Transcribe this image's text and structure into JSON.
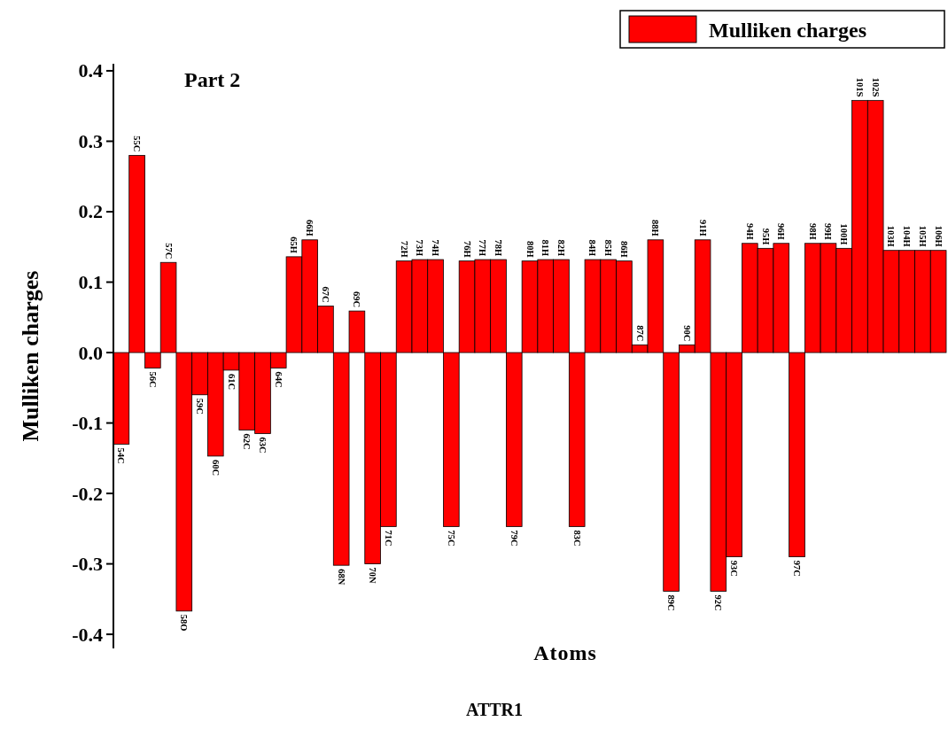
{
  "chart_data": {
    "type": "bar",
    "title": "Part 2",
    "xlabel": "Atoms",
    "ylabel": "Mulliken charges",
    "annotations": [
      "ATTR1"
    ],
    "categories": [
      "54C",
      "55C",
      "56C",
      "57C",
      "58O",
      "59C",
      "60C",
      "61C",
      "62C",
      "63C",
      "64C",
      "65H",
      "66H",
      "67C",
      "68N",
      "69C",
      "70N",
      "71C",
      "72H",
      "73H",
      "74H",
      "75C",
      "76H",
      "77H",
      "78H",
      "79C",
      "80H",
      "81H",
      "82H",
      "83C",
      "84H",
      "85H",
      "86H",
      "87C",
      "88H",
      "89C",
      "90C",
      "91H",
      "92C",
      "93C",
      "94H",
      "95H",
      "96H",
      "97C",
      "98H",
      "99H",
      "100H",
      "101S",
      "102S",
      "103H",
      "104H",
      "105H",
      "106H"
    ],
    "series": [
      {
        "name": "Mulliken charges",
        "color": "#ff0000",
        "values": [
          -0.13,
          0.28,
          -0.022,
          0.128,
          -0.367,
          -0.06,
          -0.147,
          -0.025,
          -0.11,
          -0.115,
          -0.022,
          0.136,
          0.16,
          0.066,
          -0.302,
          0.059,
          -0.3,
          -0.247,
          0.13,
          0.132,
          0.132,
          -0.247,
          0.13,
          0.132,
          0.132,
          -0.247,
          0.13,
          0.132,
          0.132,
          -0.247,
          0.132,
          0.132,
          0.13,
          0.011,
          0.16,
          -0.339,
          0.011,
          0.16,
          -0.339,
          -0.29,
          0.155,
          0.148,
          0.155,
          -0.29,
          0.155,
          0.155,
          0.148,
          0.358,
          0.358,
          0.145,
          0.145,
          0.145,
          0.145
        ]
      }
    ],
    "ylim": [
      -0.42,
      0.41
    ],
    "yticks": [
      -0.4,
      -0.3,
      -0.2,
      -0.1,
      {
        "value": 0,
        "label": "0.0"
      },
      0.1,
      0.2,
      0.3,
      0.4
    ],
    "grid": false,
    "legend": "top right"
  }
}
